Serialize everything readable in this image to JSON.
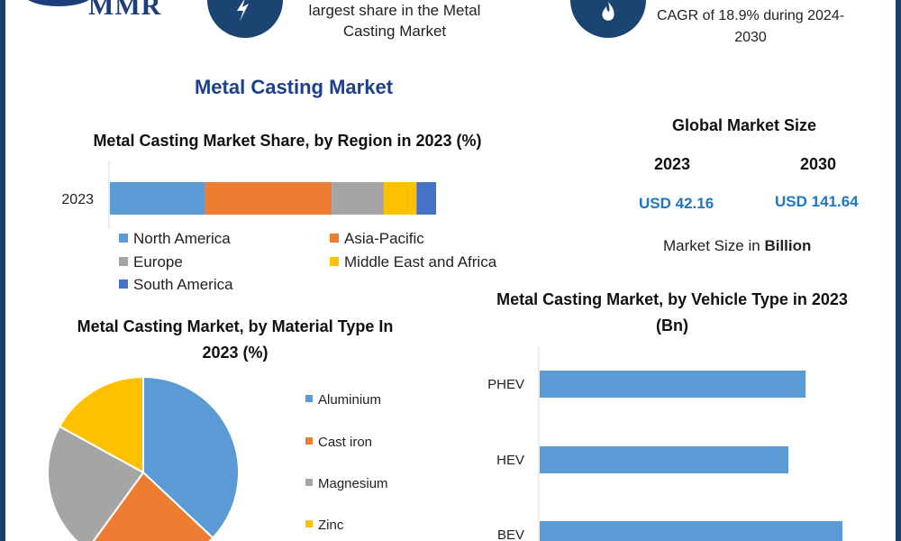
{
  "header": {
    "logo_text": "MMR",
    "text_1": "largest share in the Metal Casting Market",
    "text_2": "CAGR of 18.9% during 2024-2030",
    "colors": {
      "navy": "#1b4472",
      "border": "#1b3f6b"
    },
    "icons": [
      "lightning-icon",
      "flame-icon"
    ]
  },
  "main_title": "Metal Casting Market",
  "global_market_size": {
    "title": "Global Market Size",
    "year_1": "2023",
    "year_2": "2030",
    "value_1": "USD 42.16",
    "value_2": "USD 141.64",
    "unit_prefix": "Market Size in ",
    "unit_bold": "Billion"
  },
  "chart_data": [
    {
      "type": "bar",
      "orientation": "horizontal-stacked",
      "title": "Metal Casting Market Share, by Region in 2023 (%)",
      "categories": [
        "2023"
      ],
      "series": [
        {
          "name": "North America",
          "values": [
            29
          ],
          "color": "#5b9bd5"
        },
        {
          "name": "Asia-Pacific",
          "values": [
            39
          ],
          "color": "#ed7d31"
        },
        {
          "name": "Europe",
          "values": [
            16
          ],
          "color": "#a5a5a5"
        },
        {
          "name": "Middle East and Africa",
          "values": [
            10
          ],
          "color": "#ffc000"
        },
        {
          "name": "South America",
          "values": [
            6
          ],
          "color": "#4472c4"
        }
      ],
      "xlim": [
        0,
        100
      ],
      "grid": false,
      "legend_placement": "bottom"
    },
    {
      "type": "pie",
      "title": "Metal Casting Market, by Material Type In 2023 (%)",
      "slices": [
        {
          "name": "Aluminium",
          "value": 37,
          "color": "#5b9bd5"
        },
        {
          "name": "Cast iron",
          "value": 23,
          "color": "#ed7d31"
        },
        {
          "name": "Magnesium",
          "value": 23,
          "color": "#a5a5a5"
        },
        {
          "name": "Zinc",
          "value": 17,
          "color": "#ffc000"
        }
      ],
      "legend_placement": "right"
    },
    {
      "type": "bar",
      "orientation": "horizontal",
      "title": "Metal Casting Market, by Vehicle Type in 2023 (Bn)",
      "categories": [
        "PHEV",
        "HEV",
        "BEV"
      ],
      "values": [
        12.3,
        11.5,
        14.0
      ],
      "xlim": [
        0,
        16
      ],
      "color": "#5b9bd5",
      "grid": false
    }
  ]
}
